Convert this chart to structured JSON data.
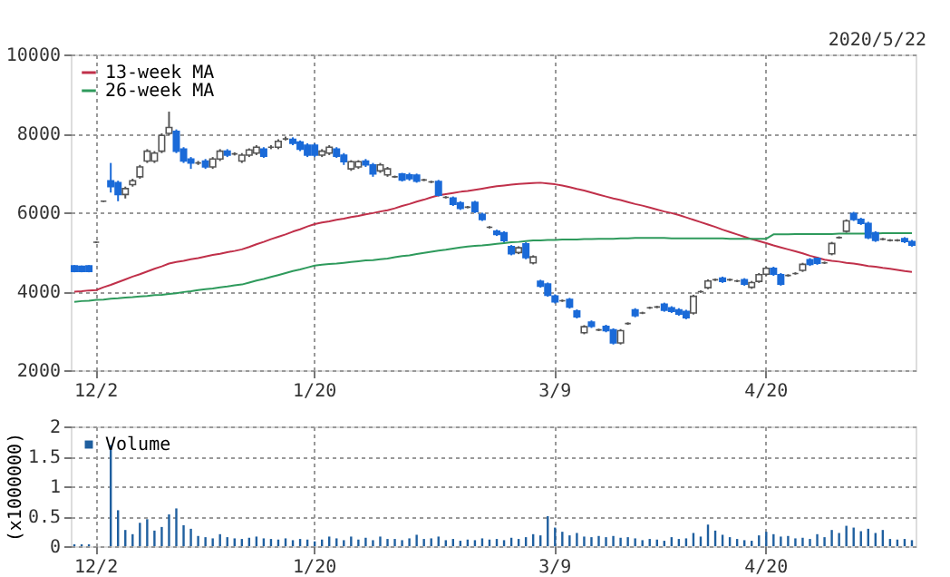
{
  "chart_data": [
    {
      "type": "candlestick",
      "annotations": [
        "2020/5/22"
      ],
      "grid": true,
      "legend": "top left",
      "categories": [
        null,
        null,
        null,
        "12/2",
        null,
        null,
        null,
        null,
        null,
        null,
        null,
        null,
        null,
        null,
        null,
        null,
        null,
        null,
        null,
        null,
        null,
        null,
        null,
        null,
        null,
        null,
        null,
        null,
        null,
        null,
        null,
        null,
        null,
        "1/20",
        null,
        null,
        null,
        null,
        null,
        null,
        null,
        null,
        null,
        null,
        null,
        null,
        null,
        null,
        null,
        null,
        null,
        null,
        null,
        null,
        null,
        null,
        null,
        null,
        null,
        null,
        null,
        null,
        null,
        null,
        null,
        null,
        "3/9",
        null,
        null,
        null,
        null,
        null,
        null,
        null,
        null,
        null,
        null,
        null,
        null,
        null,
        null,
        null,
        null,
        null,
        null,
        null,
        null,
        null,
        null,
        null,
        null,
        null,
        null,
        null,
        null,
        "4/20",
        null,
        null,
        null,
        null,
        null,
        null,
        null,
        null,
        null,
        null,
        null,
        null,
        null,
        null,
        null,
        null,
        null,
        null,
        null,
        null
      ],
      "ylim": [
        2000,
        10000
      ],
      "yticks": [
        2000,
        4000,
        6000,
        8000,
        10000
      ],
      "ohlc": [
        [
          4640,
          4660,
          4480,
          4500
        ],
        [
          4630,
          4650,
          4480,
          4500
        ],
        [
          4640,
          4660,
          4480,
          4500
        ],
        [
          5240,
          5260,
          5220,
          5240
        ],
        [
          6280,
          6300,
          6260,
          6280
        ],
        [
          6800,
          7250,
          6500,
          6650
        ],
        [
          6750,
          6800,
          6280,
          6450
        ],
        [
          6450,
          6650,
          6350,
          6600
        ],
        [
          6700,
          6850,
          6650,
          6800
        ],
        [
          6900,
          7200,
          6850,
          7150
        ],
        [
          7300,
          7600,
          7250,
          7550
        ],
        [
          7300,
          7550,
          7250,
          7500
        ],
        [
          7550,
          8000,
          7500,
          7950
        ],
        [
          8000,
          8550,
          7950,
          8150
        ],
        [
          8050,
          8100,
          7500,
          7550
        ],
        [
          7600,
          7650,
          7250,
          7300
        ],
        [
          7350,
          7400,
          7100,
          7250
        ],
        [
          7250,
          7300,
          7200,
          7250
        ],
        [
          7300,
          7350,
          7100,
          7150
        ],
        [
          7150,
          7400,
          7100,
          7350
        ],
        [
          7350,
          7600,
          7300,
          7550
        ],
        [
          7550,
          7600,
          7400,
          7450
        ],
        [
          7480,
          7520,
          7440,
          7480
        ],
        [
          7300,
          7500,
          7250,
          7450
        ],
        [
          7450,
          7620,
          7400,
          7580
        ],
        [
          7500,
          7700,
          7450,
          7650
        ],
        [
          7600,
          7650,
          7380,
          7420
        ],
        [
          7650,
          7700,
          7600,
          7650
        ],
        [
          7650,
          7850,
          7600,
          7800
        ],
        [
          7860,
          7920,
          7820,
          7860
        ],
        [
          7850,
          7900,
          7700,
          7750
        ],
        [
          7780,
          7820,
          7550,
          7600
        ],
        [
          7700,
          7750,
          7400,
          7450
        ],
        [
          7700,
          7750,
          7400,
          7450
        ],
        [
          7450,
          7600,
          7400,
          7550
        ],
        [
          7500,
          7700,
          7450,
          7650
        ],
        [
          7600,
          7650,
          7380,
          7420
        ],
        [
          7450,
          7500,
          7200,
          7280
        ],
        [
          7100,
          7320,
          7050,
          7280
        ],
        [
          7150,
          7320,
          7100,
          7280
        ],
        [
          7300,
          7350,
          7150,
          7200
        ],
        [
          7200,
          7250,
          6900,
          6970
        ],
        [
          7050,
          7250,
          7000,
          7200
        ],
        [
          6950,
          7150,
          6900,
          7100
        ],
        [
          6900,
          6930,
          6870,
          6900
        ],
        [
          6970,
          7000,
          6780,
          6820
        ],
        [
          6950,
          7000,
          6800,
          6850
        ],
        [
          6940,
          6980,
          6750,
          6790
        ],
        [
          6820,
          6850,
          6790,
          6820
        ],
        [
          6770,
          6800,
          6740,
          6770
        ],
        [
          6780,
          6820,
          6400,
          6430
        ],
        [
          6380,
          6410,
          6350,
          6380
        ],
        [
          6360,
          6400,
          6160,
          6200
        ],
        [
          6240,
          6280,
          6060,
          6100
        ],
        [
          6130,
          6160,
          6100,
          6130
        ],
        [
          6250,
          6290,
          5980,
          6020
        ],
        [
          5950,
          5990,
          5780,
          5820
        ],
        [
          5620,
          5650,
          5590,
          5620
        ],
        [
          5520,
          5560,
          5400,
          5440
        ],
        [
          5480,
          5520,
          5240,
          5280
        ],
        [
          5130,
          5170,
          4910,
          4950
        ],
        [
          4980,
          5140,
          4940,
          5100
        ],
        [
          5200,
          5240,
          4810,
          4850
        ],
        [
          4720,
          4910,
          4680,
          4870
        ],
        [
          4250,
          4290,
          4090,
          4130
        ],
        [
          4180,
          4220,
          3860,
          3900
        ],
        [
          3880,
          3920,
          3690,
          3730
        ],
        [
          3760,
          3790,
          3730,
          3760
        ],
        [
          3790,
          3830,
          3560,
          3600
        ],
        [
          3500,
          3540,
          3310,
          3350
        ],
        [
          2950,
          3140,
          2910,
          3100
        ],
        [
          3220,
          3260,
          3070,
          3110
        ],
        [
          3020,
          3050,
          2990,
          3020
        ],
        [
          3110,
          3150,
          2960,
          3000
        ],
        [
          3020,
          3060,
          2650,
          2690
        ],
        [
          2690,
          3040,
          2650,
          3000
        ],
        [
          3180,
          3210,
          3150,
          3180
        ],
        [
          3530,
          3570,
          3340,
          3380
        ],
        [
          3450,
          3480,
          3420,
          3450
        ],
        [
          3580,
          3610,
          3550,
          3580
        ],
        [
          3600,
          3630,
          3570,
          3600
        ],
        [
          3670,
          3710,
          3480,
          3520
        ],
        [
          3580,
          3620,
          3450,
          3490
        ],
        [
          3530,
          3570,
          3380,
          3420
        ],
        [
          3490,
          3530,
          3290,
          3330
        ],
        [
          3450,
          3910,
          3410,
          3870
        ],
        [
          3990,
          4020,
          3960,
          3990
        ],
        [
          4090,
          4300,
          4050,
          4260
        ],
        [
          4290,
          4320,
          4260,
          4290
        ],
        [
          4330,
          4370,
          4210,
          4250
        ],
        [
          4290,
          4320,
          4260,
          4290
        ],
        [
          4260,
          4290,
          4230,
          4260
        ],
        [
          4290,
          4330,
          4140,
          4180
        ],
        [
          4100,
          4260,
          4060,
          4220
        ],
        [
          4250,
          4460,
          4210,
          4420
        ],
        [
          4430,
          4620,
          4390,
          4580
        ],
        [
          4580,
          4620,
          4390,
          4430
        ],
        [
          4420,
          4460,
          4140,
          4180
        ],
        [
          4400,
          4430,
          4370,
          4400
        ],
        [
          4450,
          4480,
          4420,
          4450
        ],
        [
          4530,
          4720,
          4490,
          4680
        ],
        [
          4800,
          4840,
          4640,
          4680
        ],
        [
          4830,
          4870,
          4670,
          4710
        ],
        [
          4720,
          4750,
          4690,
          4720
        ],
        [
          4950,
          5250,
          4910,
          5210
        ],
        [
          5360,
          5390,
          5330,
          5360
        ],
        [
          5520,
          5820,
          5480,
          5780
        ],
        [
          5970,
          6010,
          5780,
          5820
        ],
        [
          5820,
          5860,
          5680,
          5720
        ],
        [
          5720,
          5760,
          5320,
          5360
        ],
        [
          5480,
          5520,
          5250,
          5290
        ],
        [
          5320,
          5350,
          5290,
          5320
        ],
        [
          5290,
          5320,
          5260,
          5290
        ],
        [
          5290,
          5320,
          5260,
          5290
        ],
        [
          5330,
          5370,
          5220,
          5260
        ],
        [
          5260,
          5300,
          5130,
          5170
        ]
      ],
      "series": [
        {
          "name": "13-week MA",
          "type": "line",
          "color": "#c0304a",
          "values": [
            3990,
            4000,
            4020,
            4030,
            4100,
            4160,
            4230,
            4300,
            4370,
            4430,
            4500,
            4570,
            4630,
            4700,
            4740,
            4770,
            4810,
            4840,
            4880,
            4920,
            4950,
            4990,
            5020,
            5060,
            5120,
            5190,
            5250,
            5320,
            5380,
            5440,
            5510,
            5570,
            5640,
            5700,
            5740,
            5770,
            5810,
            5840,
            5880,
            5910,
            5950,
            5980,
            6020,
            6050,
            6100,
            6160,
            6210,
            6270,
            6320,
            6380,
            6430,
            6460,
            6490,
            6520,
            6540,
            6570,
            6600,
            6630,
            6660,
            6680,
            6700,
            6720,
            6730,
            6740,
            6750,
            6730,
            6710,
            6680,
            6640,
            6590,
            6550,
            6500,
            6450,
            6400,
            6350,
            6310,
            6260,
            6210,
            6170,
            6120,
            6070,
            6020,
            5980,
            5930,
            5870,
            5810,
            5750,
            5690,
            5630,
            5560,
            5500,
            5440,
            5380,
            5320,
            5270,
            5220,
            5160,
            5110,
            5060,
            5010,
            4960,
            4900,
            4850,
            4800,
            4770,
            4750,
            4720,
            4700,
            4670,
            4640,
            4620,
            4590,
            4570,
            4540,
            4510,
            4490
          ]
        },
        {
          "name": "26-week MA",
          "type": "line",
          "color": "#2e9a5c",
          "values": [
            3730,
            3750,
            3760,
            3780,
            3790,
            3810,
            3820,
            3840,
            3850,
            3870,
            3880,
            3900,
            3910,
            3930,
            3950,
            3980,
            4000,
            4030,
            4050,
            4070,
            4100,
            4120,
            4150,
            4170,
            4220,
            4270,
            4310,
            4360,
            4410,
            4460,
            4510,
            4550,
            4600,
            4650,
            4670,
            4690,
            4700,
            4720,
            4740,
            4760,
            4780,
            4790,
            4810,
            4830,
            4860,
            4890,
            4910,
            4940,
            4970,
            5000,
            5030,
            5050,
            5080,
            5110,
            5130,
            5150,
            5160,
            5180,
            5200,
            5220,
            5240,
            5250,
            5270,
            5290,
            5290,
            5300,
            5300,
            5310,
            5310,
            5310,
            5320,
            5320,
            5330,
            5330,
            5330,
            5340,
            5340,
            5350,
            5350,
            5350,
            5350,
            5350,
            5340,
            5340,
            5340,
            5340,
            5340,
            5340,
            5340,
            5340,
            5330,
            5330,
            5330,
            5330,
            5330,
            5330,
            5440,
            5440,
            5440,
            5450,
            5450,
            5450,
            5450,
            5450,
            5450,
            5460,
            5460,
            5460,
            5460,
            5460,
            5460,
            5470,
            5470,
            5470,
            5470,
            5470
          ]
        }
      ]
    },
    {
      "type": "bar",
      "grid": true,
      "legend": "top left",
      "ylabel": "(x1000000)",
      "categories": [
        null,
        null,
        null,
        "12/2",
        null,
        null,
        null,
        null,
        null,
        null,
        null,
        null,
        null,
        null,
        null,
        null,
        null,
        null,
        null,
        null,
        null,
        null,
        null,
        null,
        null,
        null,
        null,
        null,
        null,
        null,
        null,
        null,
        null,
        "1/20",
        null,
        null,
        null,
        null,
        null,
        null,
        null,
        null,
        null,
        null,
        null,
        null,
        null,
        null,
        null,
        null,
        null,
        null,
        null,
        null,
        null,
        null,
        null,
        null,
        null,
        null,
        null,
        null,
        null,
        null,
        null,
        null,
        "3/9",
        null,
        null,
        null,
        null,
        null,
        null,
        null,
        null,
        null,
        null,
        null,
        null,
        null,
        null,
        null,
        null,
        null,
        null,
        null,
        null,
        null,
        null,
        null,
        null,
        null,
        null,
        null,
        null,
        "4/20",
        null,
        null,
        null,
        null,
        null,
        null,
        null,
        null,
        null,
        null,
        null,
        null,
        null,
        null,
        null,
        null,
        null,
        null,
        null,
        null
      ],
      "ylim": [
        0,
        2
      ],
      "yticks": [
        0,
        0.5,
        1,
        1.5,
        2
      ],
      "series": [
        {
          "name": "Volume",
          "color": "#1f5f9f",
          "values": [
            0.03,
            0.03,
            0.03,
            null,
            null,
            1.69,
            0.6,
            0.27,
            0.2,
            0.39,
            0.45,
            0.26,
            0.32,
            0.53,
            0.63,
            0.35,
            0.29,
            0.17,
            0.15,
            0.13,
            0.2,
            0.15,
            0.13,
            0.12,
            0.14,
            0.16,
            0.13,
            0.12,
            0.11,
            0.13,
            0.1,
            0.12,
            0.11,
            0.08,
            0.11,
            0.16,
            0.13,
            0.1,
            0.16,
            0.11,
            0.14,
            0.1,
            0.16,
            0.12,
            0.12,
            0.1,
            0.13,
            0.19,
            0.12,
            0.13,
            0.16,
            0.1,
            0.12,
            0.09,
            0.11,
            0.1,
            0.13,
            0.11,
            0.12,
            0.1,
            0.14,
            0.12,
            0.15,
            0.2,
            0.18,
            0.5,
            0.31,
            0.24,
            0.18,
            0.22,
            0.16,
            0.15,
            0.17,
            0.15,
            0.17,
            0.14,
            0.15,
            0.13,
            0.1,
            0.12,
            0.11,
            0.09,
            0.15,
            0.12,
            0.13,
            0.22,
            0.16,
            0.36,
            0.26,
            0.19,
            0.15,
            0.12,
            0.1,
            0.09,
            0.18,
            0.24,
            0.2,
            0.16,
            0.17,
            0.13,
            0.14,
            0.12,
            0.2,
            0.15,
            0.27,
            0.22,
            0.34,
            0.31,
            0.25,
            0.29,
            0.22,
            0.27,
            0.12,
            0.11,
            0.12,
            0.1
          ]
        }
      ]
    }
  ]
}
